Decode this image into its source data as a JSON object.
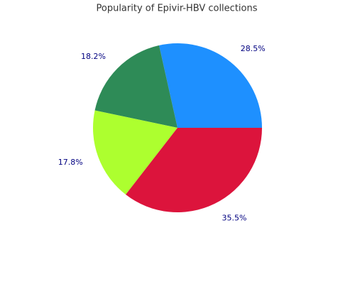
{
  "chart_data": {
    "type": "pie",
    "title": "Popularity of Epivir-HBV collections",
    "values": [
      28.5,
      18.2,
      17.8,
      35.5
    ],
    "value_labels": [
      "28.5%",
      "18.2%",
      "17.8%",
      "35.5%"
    ],
    "colors": [
      "#1e90ff",
      "#2e8b57",
      "#adff2f",
      "#dc143c"
    ]
  }
}
